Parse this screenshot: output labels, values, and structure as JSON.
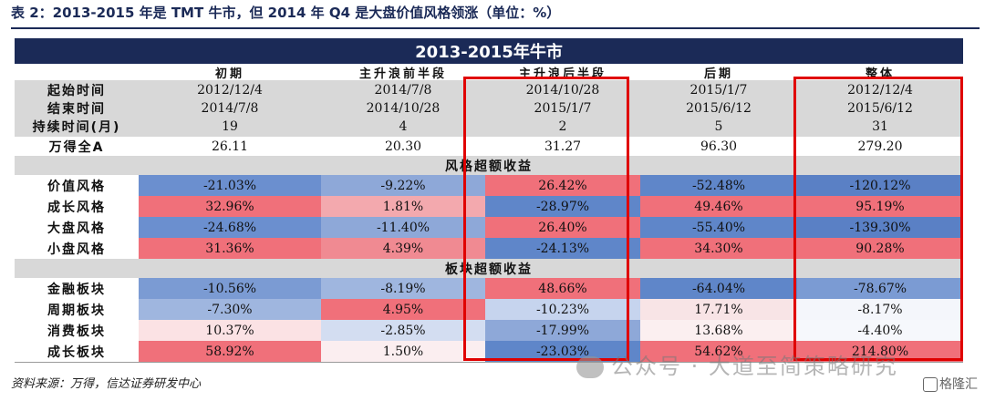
{
  "caption": "表 2：2013-2015 年是 TMT 牛市，但 2014 年 Q4 是大盘价值风格领涨（单位：%）",
  "table": {
    "title": "2013-2015年牛市",
    "columns": [
      "初期",
      "主升浪前半段",
      "主升浪后半段",
      "后期",
      "整体"
    ],
    "period_rows": [
      {
        "label": "起始时间",
        "values": [
          "2012/12/4",
          "2014/7/8",
          "2014/10/28",
          "2015/1/7",
          "2012/12/4"
        ]
      },
      {
        "label": "结束时间",
        "values": [
          "2014/7/8",
          "2014/10/28",
          "2015/1/7",
          "2015/6/12",
          "2015/6/12"
        ]
      },
      {
        "label": "持续时间(月)",
        "values": [
          "19",
          "4",
          "2",
          "5",
          "31"
        ]
      },
      {
        "label": "万得全A",
        "values": [
          "26.11",
          "20.30",
          "31.27",
          "96.30",
          "279.20"
        ]
      }
    ],
    "sections": [
      {
        "title": "风格超额收益",
        "rows": [
          {
            "label": "价值风格",
            "values": [
              "-21.03%",
              "-9.22%",
              "26.42%",
              "-52.48%",
              "-120.12%"
            ],
            "colors": [
              "#6b8fcf",
              "#8ea8d8",
              "#f0707a",
              "#5f86c9",
              "#5a80c5"
            ]
          },
          {
            "label": "成长风格",
            "values": [
              "32.96%",
              "1.81%",
              "-28.97%",
              "49.46%",
              "95.19%"
            ],
            "colors": [
              "#f0707a",
              "#f3a9ae",
              "#5f86c9",
              "#f0707a",
              "#f0707a"
            ]
          },
          {
            "label": "大盘风格",
            "values": [
              "-24.68%",
              "-11.40%",
              "26.40%",
              "-55.40%",
              "-139.30%"
            ],
            "colors": [
              "#6b8fcf",
              "#8ea8d8",
              "#f0707a",
              "#5f86c9",
              "#5a80c5"
            ]
          },
          {
            "label": "小盘风格",
            "values": [
              "31.36%",
              "4.39%",
              "-24.13%",
              "34.30%",
              "90.28%"
            ],
            "colors": [
              "#f0707a",
              "#f08a92",
              "#5f86c9",
              "#f0707a",
              "#f0707a"
            ]
          }
        ]
      },
      {
        "title": "板块超额收益",
        "rows": [
          {
            "label": "金融板块",
            "values": [
              "-10.56%",
              "-8.19%",
              "48.66%",
              "-64.04%",
              "-78.67%"
            ],
            "colors": [
              "#7b9bd3",
              "#9fb6df",
              "#f0707a",
              "#5f86c9",
              "#7b9bd3"
            ]
          },
          {
            "label": "周期板块",
            "values": [
              "-7.30%",
              "4.95%",
              "-10.23%",
              "17.71%",
              "-8.17%"
            ],
            "colors": [
              "#9fb6df",
              "#f0707a",
              "#c6d4ee",
              "#f8e4e6",
              "#f4f6fb"
            ]
          },
          {
            "label": "消费板块",
            "values": [
              "10.37%",
              "-2.85%",
              "-17.99%",
              "13.68%",
              "-4.40%"
            ],
            "colors": [
              "#fbe2e4",
              "#d3ddf1",
              "#8ea8d8",
              "#fbeff0",
              "#f6f8fc"
            ]
          },
          {
            "label": "成长板块",
            "values": [
              "58.92%",
              "1.50%",
              "-23.03%",
              "54.62%",
              "214.80%"
            ],
            "colors": [
              "#f0707a",
              "#fbeef0",
              "#5f86c9",
              "#f0707a",
              "#f0707a"
            ]
          }
        ]
      }
    ]
  },
  "source": "资料来源：万得，信达证券研发中心",
  "watermark": "公众号 · 大道至简策略研究",
  "badge": "格隆汇"
}
